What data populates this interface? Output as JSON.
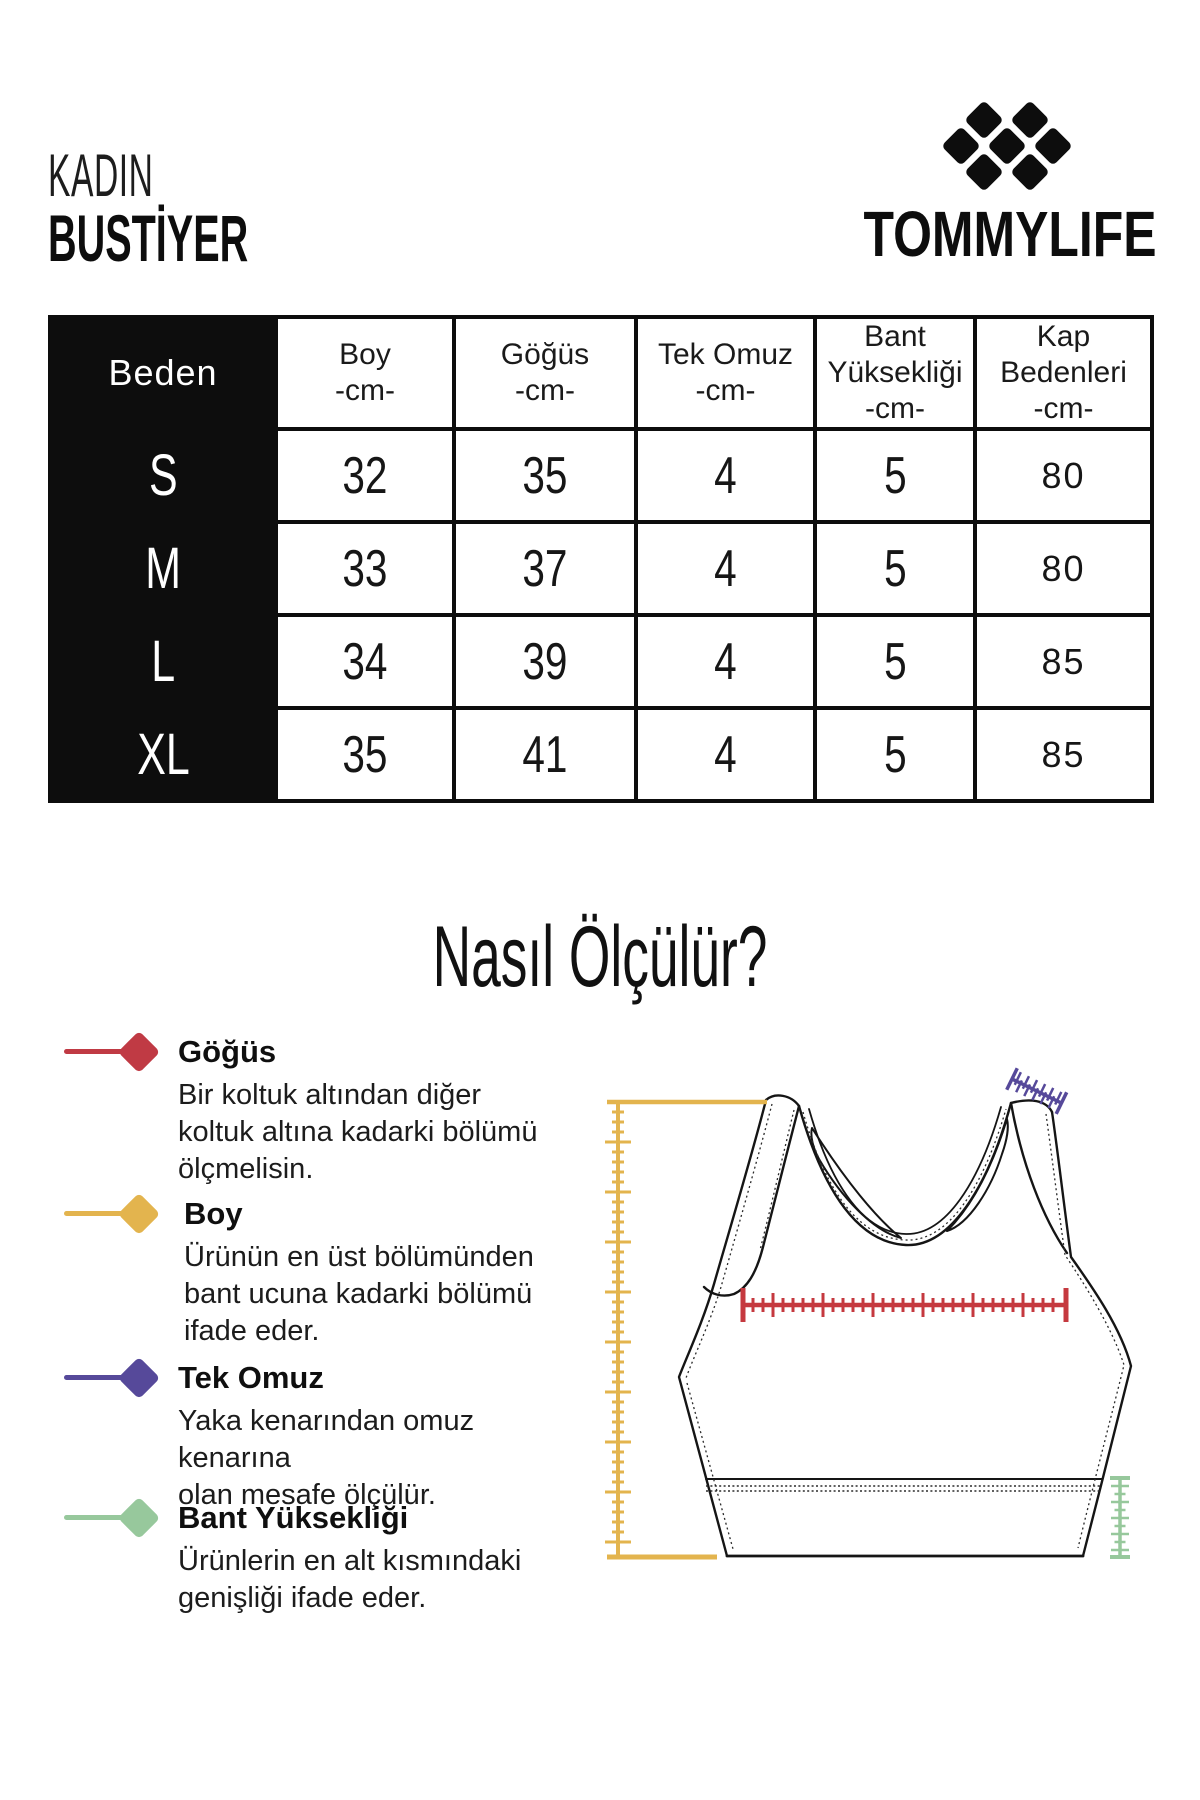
{
  "header": {
    "category": "KADIN",
    "product": "BUSTİYER",
    "brand": "TOMMYLIFE",
    "logo_icon": "tommylife-diamond-grid"
  },
  "size_table": {
    "columns": [
      {
        "label": "Beden",
        "unit": ""
      },
      {
        "label": "Boy",
        "unit": "-cm-"
      },
      {
        "label": "Göğüs",
        "unit": "-cm-"
      },
      {
        "label": "Tek Omuz",
        "unit": "-cm-"
      },
      {
        "label": "Bant\nYüksekliği",
        "unit": "-cm-"
      },
      {
        "label": "Kap\nBedenleri",
        "unit": "-cm-"
      }
    ],
    "rows": [
      {
        "size": "S",
        "values": [
          "32",
          "35",
          "4",
          "5",
          "80"
        ]
      },
      {
        "size": "M",
        "values": [
          "33",
          "37",
          "4",
          "5",
          "80"
        ]
      },
      {
        "size": "L",
        "values": [
          "34",
          "39",
          "4",
          "5",
          "85"
        ]
      },
      {
        "size": "XL",
        "values": [
          "35",
          "41",
          "4",
          "5",
          "85"
        ]
      }
    ]
  },
  "how_to_measure": {
    "title": "Nasıl Ölçülür?",
    "items": [
      {
        "name": "Göğüs",
        "color": "#C03A44",
        "description": "Bir koltuk altından diğer\nkoltuk altına kadarki bölümü\nölçmelisin."
      },
      {
        "name": "Boy",
        "color": "#E3B44E",
        "description": "Ürünün en üst bölümünden\nbant ucuna kadarki bölümü\nifade eder."
      },
      {
        "name": "Tek Omuz",
        "color": "#56499A",
        "description": "Yaka kenarından omuz kenarına\nolan mesafe ölçülür."
      },
      {
        "name": "Bant Yüksekliği",
        "color": "#97C89C",
        "description": "Ürünlerin en alt kısmındaki\ngenişliği ifade eder."
      }
    ],
    "diagram": {
      "subject": "sports-bra-line-drawing",
      "rulers": [
        {
          "name": "boy-ruler",
          "orientation": "vertical",
          "color": "#E3B44E"
        },
        {
          "name": "gogus-ruler",
          "orientation": "horizontal",
          "color": "#C5393F"
        },
        {
          "name": "tek-omuz-ruler",
          "orientation": "diagonal",
          "color": "#56499A"
        },
        {
          "name": "bant-yuksekligi-ruler",
          "orientation": "vertical",
          "color": "#97C89C"
        }
      ]
    }
  }
}
